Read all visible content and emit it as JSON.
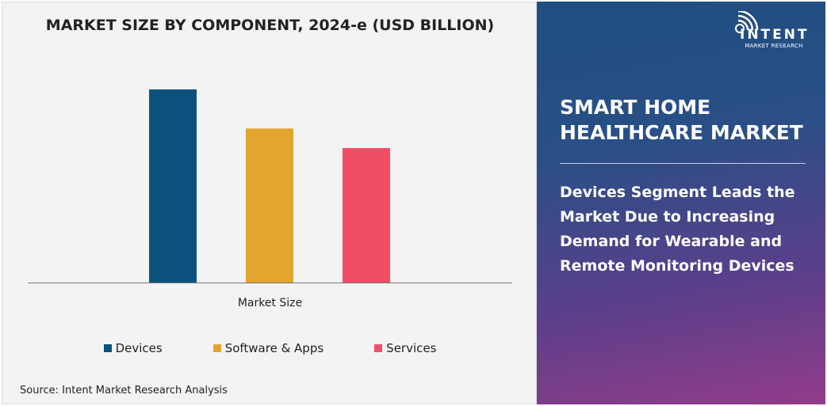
{
  "chart_data": {
    "type": "bar",
    "title": "MARKET SIZE BY COMPONENT, 2024-e (USD BILLION)",
    "categories": [
      "Market Size"
    ],
    "xlabel": "Market Size",
    "series": [
      {
        "name": "Devices",
        "values": [
          24.7
        ],
        "color": "#0b527d"
      },
      {
        "name": "Software & Apps",
        "values": [
          19.7
        ],
        "color": "#e2a530"
      },
      {
        "name": "Services",
        "values": [
          17.2
        ],
        "color": "#f04e67"
      }
    ],
    "ylim": [
      0,
      25
    ],
    "grid": false,
    "legend": "bottom"
  },
  "source": "Source: Intent Market Research Analysis",
  "panel": {
    "logo_brand": "INTENT",
    "logo_sub": "MARKET RESEARCH",
    "title": "SMART HOME HEALTHCARE MARKET",
    "headline": "Devices Segment Leads the Market Due to Increasing Demand for Wearable and Remote Monitoring Devices"
  }
}
